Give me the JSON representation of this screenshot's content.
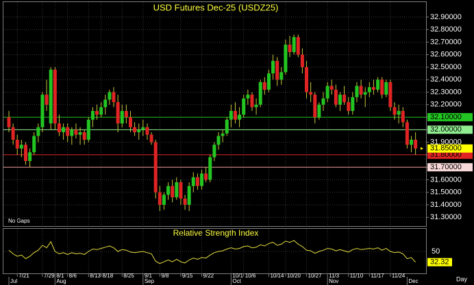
{
  "chart_data": {
    "type": "candlestick",
    "title": "USD Futures Dec-25 (USDZ25)",
    "note": "No Gaps",
    "period": "Day",
    "up_color": "#22c522",
    "down_color": "#e02424",
    "wick_color": "#c8c83c",
    "grid": true,
    "ylim": [
      31.23,
      33.02
    ],
    "yticks": [
      {
        "value": 31.3,
        "label": "31.30000"
      },
      {
        "value": 31.4,
        "label": "31.40000"
      },
      {
        "value": 31.5,
        "label": "31.50000"
      },
      {
        "value": 31.6,
        "label": "31.60000"
      },
      {
        "value": 31.7,
        "label": "31.70000"
      },
      {
        "value": 31.8,
        "label": "31.80000"
      },
      {
        "value": 31.9,
        "label": "31.90000"
      },
      {
        "value": 32.0,
        "label": "32.00000"
      },
      {
        "value": 32.1,
        "label": "32.10000"
      },
      {
        "value": 32.2,
        "label": "32.20000"
      },
      {
        "value": 32.3,
        "label": "32.30000"
      },
      {
        "value": 32.4,
        "label": "32.40000"
      },
      {
        "value": 32.5,
        "label": "32.50000"
      },
      {
        "value": 32.6,
        "label": "32.60000"
      },
      {
        "value": 32.7,
        "label": "32.70000"
      },
      {
        "value": 32.8,
        "label": "32.80000"
      },
      {
        "value": 32.9,
        "label": "32.90000"
      }
    ],
    "levels": [
      {
        "value": 32.1,
        "label": "32.10000",
        "color": "#22c522",
        "bg": "#22c522",
        "text_color": "#000000"
      },
      {
        "value": 32.0,
        "label": "32.00000",
        "color": "#90ee90",
        "bg": "#90ee90",
        "text_color": "#000000"
      },
      {
        "value": 31.8,
        "label": "31.80000",
        "color": "#e02424",
        "bg": "#e02424",
        "text_color": "#000000"
      },
      {
        "value": 31.7,
        "label": "31.70000",
        "color": "#f4a0a0",
        "bg": "#f8d8d8",
        "text_color": "#000000"
      }
    ],
    "last_price": {
      "value": 31.85,
      "label": "31.85000",
      "bg": "#ffff00",
      "text_color": "#000000"
    },
    "ohlc": [
      [
        32.1,
        32.15,
        31.98,
        32.02
      ],
      [
        32.02,
        32.05,
        31.88,
        31.92
      ],
      [
        31.92,
        31.96,
        31.8,
        31.85
      ],
      [
        31.85,
        31.92,
        31.78,
        31.88
      ],
      [
        31.88,
        31.9,
        31.72,
        31.75
      ],
      [
        31.75,
        31.85,
        31.7,
        31.82
      ],
      [
        31.82,
        31.98,
        31.8,
        31.95
      ],
      [
        31.95,
        32.05,
        31.9,
        32.02
      ],
      [
        32.02,
        32.3,
        31.98,
        32.28
      ],
      [
        32.28,
        32.4,
        32.15,
        32.2
      ],
      [
        32.05,
        32.5,
        32.0,
        32.48
      ],
      [
        32.48,
        32.5,
        32.0,
        32.05
      ],
      [
        32.05,
        32.12,
        31.95,
        31.98
      ],
      [
        31.98,
        32.05,
        31.92,
        32.02
      ],
      [
        32.02,
        32.05,
        31.9,
        31.95
      ],
      [
        31.95,
        32.02,
        31.88,
        32.0
      ],
      [
        32.0,
        32.05,
        31.93,
        31.96
      ],
      [
        31.96,
        32.02,
        31.88,
        31.98
      ],
      [
        31.98,
        32.0,
        31.88,
        31.92
      ],
      [
        31.92,
        32.1,
        31.9,
        32.08
      ],
      [
        32.08,
        32.18,
        32.02,
        32.15
      ],
      [
        32.15,
        32.2,
        32.08,
        32.12
      ],
      [
        32.12,
        32.22,
        32.1,
        32.18
      ],
      [
        32.18,
        32.28,
        32.12,
        32.24
      ],
      [
        32.24,
        32.32,
        32.2,
        32.3
      ],
      [
        32.3,
        32.34,
        32.18,
        32.22
      ],
      [
        32.22,
        32.28,
        31.98,
        32.05
      ],
      [
        32.05,
        32.2,
        32.02,
        32.15
      ],
      [
        32.15,
        32.2,
        32.05,
        32.1
      ],
      [
        32.1,
        32.15,
        31.98,
        32.02
      ],
      [
        32.02,
        32.06,
        31.95,
        31.98
      ],
      [
        31.98,
        32.05,
        31.92,
        32.0
      ],
      [
        32.0,
        32.08,
        31.95,
        32.02
      ],
      [
        32.02,
        32.05,
        31.92,
        31.96
      ],
      [
        31.96,
        31.98,
        31.88,
        31.9
      ],
      [
        31.9,
        31.92,
        31.45,
        31.5
      ],
      [
        31.5,
        31.55,
        31.35,
        31.4
      ],
      [
        31.4,
        31.5,
        31.36,
        31.48
      ],
      [
        31.48,
        31.58,
        31.44,
        31.55
      ],
      [
        31.55,
        31.6,
        31.42,
        31.46
      ],
      [
        31.46,
        31.62,
        31.44,
        31.58
      ],
      [
        31.58,
        31.6,
        31.4,
        31.45
      ],
      [
        31.45,
        31.48,
        31.36,
        31.4
      ],
      [
        31.4,
        31.58,
        31.35,
        31.55
      ],
      [
        31.55,
        31.66,
        31.5,
        31.62
      ],
      [
        31.62,
        31.65,
        31.52,
        31.55
      ],
      [
        31.55,
        31.68,
        31.52,
        31.65
      ],
      [
        31.65,
        31.7,
        31.58,
        31.6
      ],
      [
        31.6,
        31.8,
        31.58,
        31.78
      ],
      [
        31.78,
        31.9,
        31.75,
        31.88
      ],
      [
        31.88,
        31.98,
        31.84,
        31.95
      ],
      [
        31.95,
        32.0,
        31.9,
        31.97
      ],
      [
        31.97,
        32.1,
        31.95,
        32.08
      ],
      [
        32.08,
        32.2,
        32.02,
        32.15
      ],
      [
        32.15,
        32.22,
        32.05,
        32.08
      ],
      [
        32.08,
        32.18,
        32.02,
        32.12
      ],
      [
        32.12,
        32.28,
        32.1,
        32.25
      ],
      [
        32.25,
        32.32,
        32.2,
        32.28
      ],
      [
        32.28,
        32.3,
        32.15,
        32.18
      ],
      [
        32.18,
        32.25,
        32.12,
        32.2
      ],
      [
        32.2,
        32.4,
        32.18,
        32.38
      ],
      [
        32.38,
        32.42,
        32.28,
        32.32
      ],
      [
        32.32,
        32.48,
        32.3,
        32.45
      ],
      [
        32.45,
        32.6,
        32.4,
        32.55
      ],
      [
        32.55,
        32.58,
        32.35,
        32.4
      ],
      [
        32.4,
        32.5,
        32.36,
        32.46
      ],
      [
        32.46,
        32.72,
        32.44,
        32.68
      ],
      [
        32.68,
        32.75,
        32.58,
        32.62
      ],
      [
        32.62,
        32.76,
        32.6,
        32.74
      ],
      [
        32.74,
        32.76,
        32.58,
        32.6
      ],
      [
        32.6,
        32.65,
        32.45,
        32.5
      ],
      [
        32.5,
        32.55,
        32.25,
        32.3
      ],
      [
        32.3,
        32.38,
        32.22,
        32.28
      ],
      [
        32.28,
        32.3,
        32.05,
        32.1
      ],
      [
        32.1,
        32.22,
        32.08,
        32.2
      ],
      [
        32.2,
        32.3,
        32.15,
        32.25
      ],
      [
        32.25,
        32.38,
        32.22,
        32.35
      ],
      [
        32.35,
        32.4,
        32.28,
        32.32
      ],
      [
        32.32,
        32.36,
        32.18,
        32.2
      ],
      [
        32.2,
        32.3,
        32.15,
        32.28
      ],
      [
        32.28,
        32.35,
        32.2,
        32.22
      ],
      [
        32.22,
        32.26,
        32.12,
        32.15
      ],
      [
        32.15,
        32.3,
        32.12,
        32.26
      ],
      [
        32.26,
        32.38,
        32.22,
        32.35
      ],
      [
        32.35,
        32.4,
        32.25,
        32.28
      ],
      [
        32.28,
        32.34,
        32.18,
        32.3
      ],
      [
        32.3,
        32.38,
        32.26,
        32.34
      ],
      [
        32.34,
        32.4,
        32.28,
        32.32
      ],
      [
        32.32,
        32.42,
        32.3,
        32.4
      ],
      [
        32.4,
        32.42,
        32.25,
        32.28
      ],
      [
        32.28,
        32.4,
        32.26,
        32.38
      ],
      [
        32.38,
        32.4,
        32.15,
        32.18
      ],
      [
        32.18,
        32.22,
        32.08,
        32.12
      ],
      [
        32.12,
        32.2,
        32.05,
        32.15
      ],
      [
        32.15,
        32.18,
        32.02,
        32.06
      ],
      [
        32.06,
        32.08,
        31.85,
        31.88
      ],
      [
        31.88,
        31.95,
        31.82,
        31.92
      ],
      [
        31.92,
        31.98,
        31.8,
        31.85
      ]
    ],
    "xticks": [
      {
        "value": 2,
        "label": "7/21"
      },
      {
        "value": 8,
        "label": "7/29"
      },
      {
        "value": 11,
        "label": "8/1"
      },
      {
        "value": 14,
        "label": "8/6"
      },
      {
        "value": 19,
        "label": "8/13"
      },
      {
        "value": 22,
        "label": "8/18"
      },
      {
        "value": 27,
        "label": "8/25"
      },
      {
        "value": 32,
        "label": "9/1"
      },
      {
        "value": 36,
        "label": "9/8"
      },
      {
        "value": 41,
        "label": "9/15"
      },
      {
        "value": 46,
        "label": "9/22"
      },
      {
        "value": 53,
        "label": "10/1"
      },
      {
        "value": 56,
        "label": "10/6"
      },
      {
        "value": 62,
        "label": "10/14"
      },
      {
        "value": 66,
        "label": "10/20"
      },
      {
        "value": 71,
        "label": "10/27"
      },
      {
        "value": 76,
        "label": "11/3"
      },
      {
        "value": 81,
        "label": "11/10"
      },
      {
        "value": 86,
        "label": "11/17"
      },
      {
        "value": 91,
        "label": "11/24"
      }
    ],
    "months": [
      {
        "value": 0,
        "label": "Jul"
      },
      {
        "value": 11,
        "label": "Aug"
      },
      {
        "value": 32,
        "label": "Sep"
      },
      {
        "value": 53,
        "label": "Oct"
      },
      {
        "value": 76,
        "label": "Nov"
      },
      {
        "value": 95,
        "label": "Dec"
      }
    ],
    "rsi": {
      "title": "Relative Strength Index",
      "color": "#e8e040",
      "ylim": [
        15,
        85
      ],
      "yticks": [
        50
      ],
      "values": [
        52,
        46,
        42,
        44,
        38,
        42,
        48,
        52,
        60,
        56,
        66,
        50,
        46,
        48,
        45,
        48,
        46,
        47,
        45,
        50,
        54,
        53,
        55,
        57,
        59,
        56,
        50,
        53,
        52,
        49,
        48,
        49,
        50,
        48,
        46,
        34,
        30,
        33,
        36,
        33,
        37,
        33,
        31,
        36,
        39,
        37,
        40,
        39,
        44,
        48,
        50,
        51,
        54,
        56,
        54,
        55,
        58,
        59,
        56,
        57,
        61,
        59,
        63,
        65,
        60,
        62,
        67,
        65,
        68,
        62,
        58,
        52,
        51,
        47,
        50,
        52,
        55,
        54,
        51,
        53,
        51,
        49,
        53,
        55,
        53,
        54,
        55,
        54,
        56,
        52,
        55,
        50,
        48,
        49,
        46,
        38,
        40,
        32.32
      ],
      "last_bg": "#ffff00"
    }
  }
}
